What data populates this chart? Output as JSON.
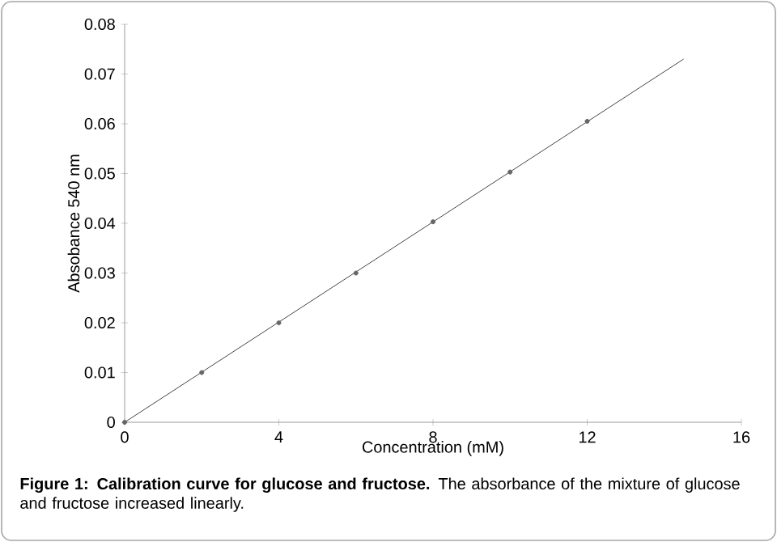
{
  "chart_data": {
    "type": "scatter",
    "xlabel": "Concentration (mM)",
    "ylabel": "Absobance 540 nm",
    "annotations": [
      "**Figure 1: Calibration curve for glucose and fructose.** The absorbance of the mixture of glucose and fructose increased linearly."
    ],
    "xlim": [
      0,
      16
    ],
    "ylim": [
      0,
      0.08
    ],
    "xticks": [
      0,
      4,
      8,
      12,
      16
    ],
    "yticks": [
      0,
      0.01,
      0.02,
      0.03,
      0.04,
      0.05,
      0.06,
      0.07,
      0.08
    ],
    "grid": false,
    "series": [
      {
        "color": "#666666",
        "marker": "circle",
        "x": [
          0,
          2,
          4,
          6,
          8,
          10,
          12
        ],
        "values": [
          0,
          0.01,
          0.02,
          0.03,
          0.0403,
          0.0503,
          0.0605
        ]
      },
      {
        "type": "line",
        "color": "#444444",
        "marker": "none",
        "line_style": "solid",
        "x": [
          0,
          14.5
        ],
        "values": [
          0,
          0.073
        ]
      }
    ]
  }
}
